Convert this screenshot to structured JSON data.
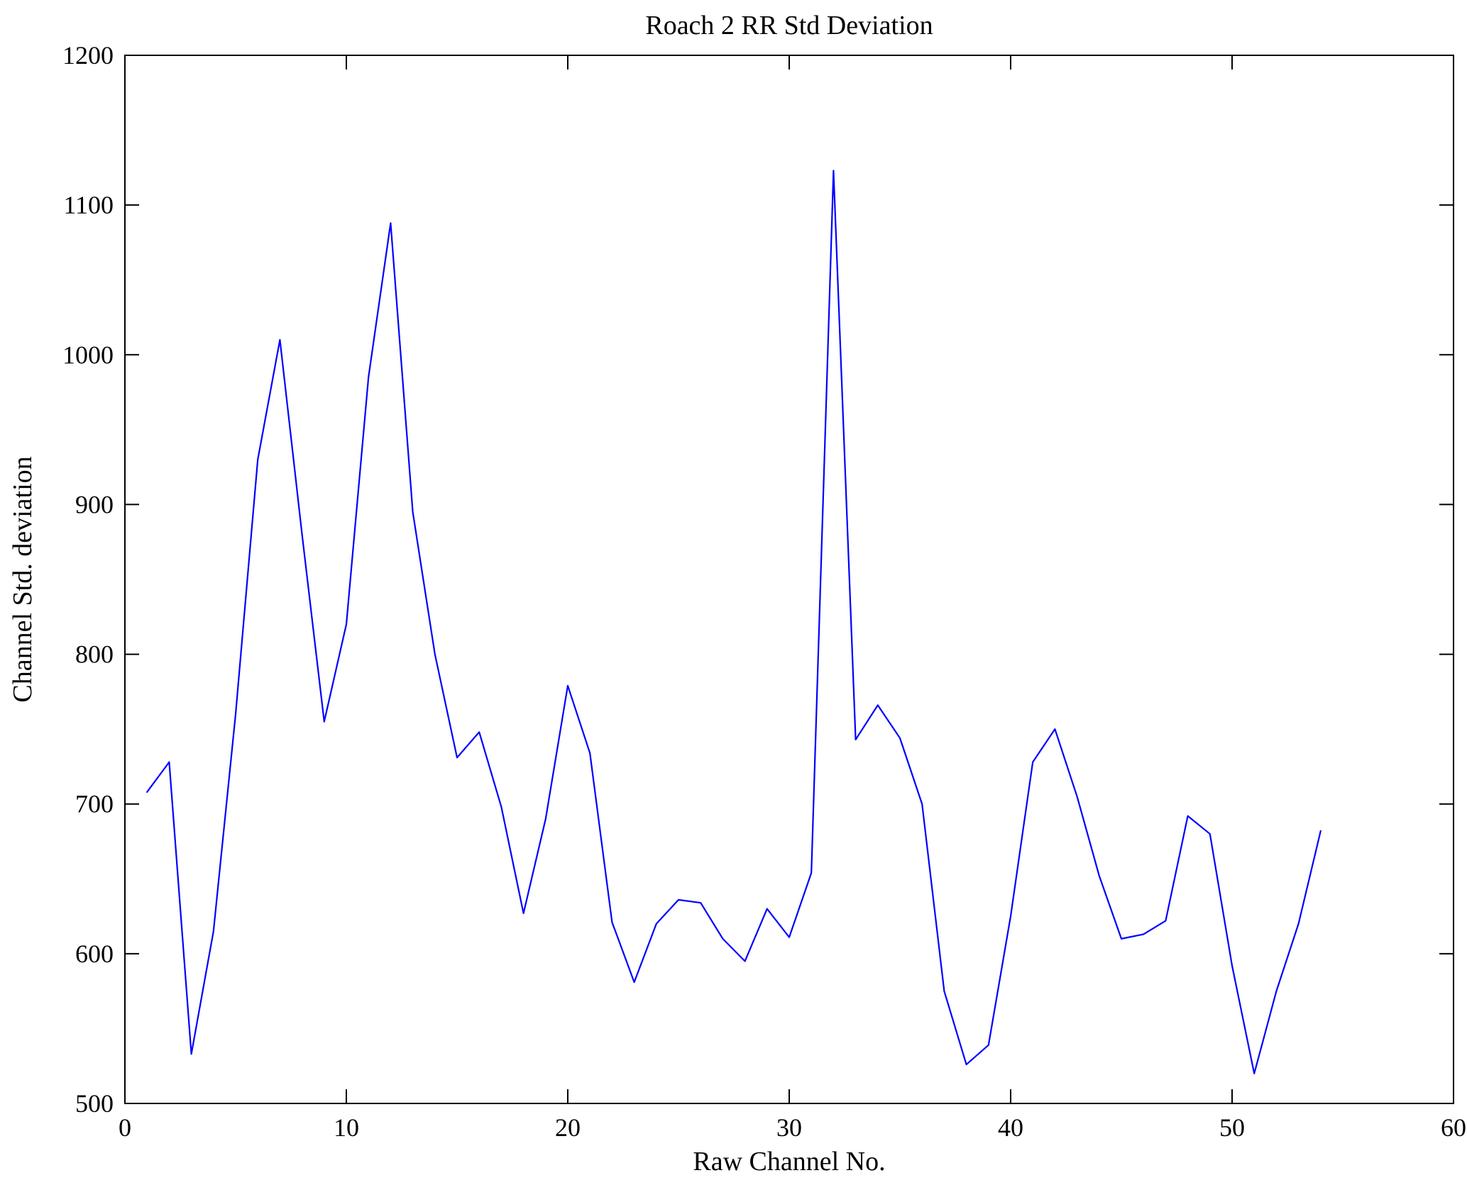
{
  "chart_data": {
    "type": "line",
    "title": "Roach 2 RR Std Deviation",
    "xlabel": "Raw Channel No.",
    "ylabel": "Channel Std. deviation",
    "xlim": [
      0,
      60
    ],
    "ylim": [
      500,
      1200
    ],
    "x_ticks": [
      0,
      10,
      20,
      30,
      40,
      50,
      60
    ],
    "y_ticks": [
      500,
      600,
      700,
      800,
      900,
      1000,
      1100,
      1200
    ],
    "grid": false,
    "legend": "none",
    "line_color": "#0000ff",
    "axis_color": "#000000",
    "background_color": "#ffffff",
    "series_name": "Channel Std. deviation vs Raw Channel No.",
    "x": [
      1,
      2,
      3,
      4,
      5,
      6,
      7,
      8,
      9,
      10,
      11,
      12,
      13,
      14,
      15,
      16,
      17,
      18,
      19,
      20,
      21,
      22,
      23,
      24,
      25,
      26,
      27,
      28,
      29,
      30,
      31,
      32,
      33,
      34,
      35,
      36,
      37,
      38,
      39,
      40,
      41,
      42,
      43,
      44,
      45,
      46,
      47,
      48,
      49,
      50,
      51,
      52,
      53,
      54
    ],
    "y": [
      708,
      728,
      533,
      615,
      760,
      930,
      1010,
      880,
      755,
      820,
      985,
      1088,
      895,
      800,
      731,
      748,
      698,
      627,
      690,
      779,
      734,
      621,
      581,
      620,
      636,
      634,
      610,
      595,
      630,
      611,
      654,
      1123,
      743,
      766,
      744,
      700,
      575,
      526,
      539,
      625,
      728,
      750,
      705,
      652,
      610,
      613,
      622,
      692,
      680,
      592,
      520,
      575,
      620,
      682
    ]
  }
}
